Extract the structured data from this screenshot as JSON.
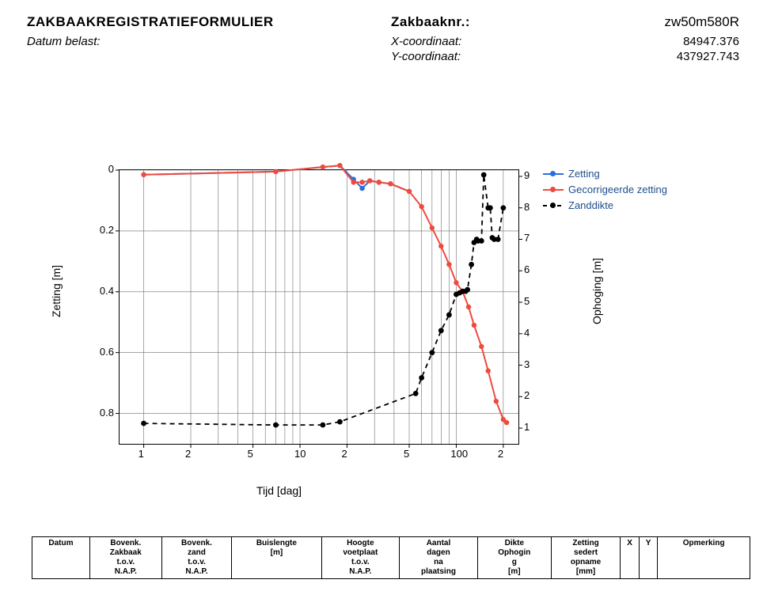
{
  "header": {
    "title": "ZAKBAAKREGISTRATIEFORMULIER",
    "datum_label": "Datum belast:",
    "zakbaaknr_label": "Zakbaaknr.:",
    "zakbaaknr_value": "zw50m580R",
    "xcoord_label": "X-coordinaat:",
    "xcoord_value": "84947.376",
    "ycoord_label": "Y-coordinaat:",
    "ycoord_value": "437927.743"
  },
  "chart": {
    "type": "line-dual-axis-logx",
    "background": "#ffffff",
    "border_color": "#000000",
    "grid_color": "#6f6f6f",
    "x_axis": {
      "label": "Tijd [dag]",
      "scale": "log",
      "min": 0.7,
      "max": 250,
      "ticks": [
        {
          "v": 1,
          "label": "1"
        },
        {
          "v": 2,
          "label": "2"
        },
        {
          "v": 5,
          "label": "5"
        },
        {
          "v": 10,
          "label": "10"
        },
        {
          "v": 20,
          "label": "2"
        },
        {
          "v": 50,
          "label": "5"
        },
        {
          "v": 100,
          "label": "100"
        },
        {
          "v": 200,
          "label": "2"
        }
      ]
    },
    "y1_axis": {
      "label": "Zetting [m]",
      "min": 0,
      "max": 0.9,
      "inverted": true,
      "ticks": [
        {
          "v": 0,
          "label": "0"
        },
        {
          "v": 0.2,
          "label": "0.2"
        },
        {
          "v": 0.4,
          "label": "0.4"
        },
        {
          "v": 0.6,
          "label": "0.6"
        },
        {
          "v": 0.8,
          "label": "0.8"
        }
      ]
    },
    "y2_axis": {
      "label": "Ophoging [m]",
      "min": 0.5,
      "max": 9.2,
      "ticks": [
        {
          "v": 1,
          "label": "1"
        },
        {
          "v": 2,
          "label": "2"
        },
        {
          "v": 3,
          "label": "3"
        },
        {
          "v": 4,
          "label": "4"
        },
        {
          "v": 5,
          "label": "5"
        },
        {
          "v": 6,
          "label": "6"
        },
        {
          "v": 7,
          "label": "7"
        },
        {
          "v": 8,
          "label": "8"
        },
        {
          "v": 9,
          "label": "9"
        }
      ]
    },
    "legend": {
      "items": [
        {
          "label": "Zetting",
          "color": "#2b6fdb",
          "dash": "none",
          "marker": "#2b6fdb"
        },
        {
          "label": "Gecorrigeerde zetting",
          "color": "#f04a3e",
          "dash": "none",
          "marker": "#f04a3e"
        },
        {
          "label": "Zanddikte",
          "color": "#000000",
          "dash": "5,4",
          "marker": "#000000"
        }
      ]
    },
    "series": {
      "zetting": {
        "color": "#2b6fdb",
        "axis": "y1",
        "lw": 2,
        "marker_r": 3.2,
        "data": [
          [
            1,
            0.015
          ],
          [
            7,
            0.005
          ],
          [
            14,
            -0.01
          ],
          [
            18,
            -0.015
          ],
          [
            22,
            0.03
          ],
          [
            25,
            0.06
          ],
          [
            28,
            0.035
          ],
          [
            32,
            0.04
          ],
          [
            38,
            0.045
          ],
          [
            50,
            0.07
          ]
        ]
      },
      "gecorrigeerde_zetting": {
        "color": "#f04a3e",
        "axis": "y1",
        "lw": 2,
        "marker_r": 3.2,
        "data": [
          [
            1,
            0.015
          ],
          [
            7,
            0.005
          ],
          [
            14,
            -0.01
          ],
          [
            18,
            -0.015
          ],
          [
            22,
            0.04
          ],
          [
            25,
            0.04
          ],
          [
            28,
            0.035
          ],
          [
            32,
            0.04
          ],
          [
            38,
            0.045
          ],
          [
            50,
            0.07
          ],
          [
            60,
            0.12
          ],
          [
            70,
            0.19
          ],
          [
            80,
            0.25
          ],
          [
            90,
            0.31
          ],
          [
            100,
            0.37
          ],
          [
            110,
            0.4
          ],
          [
            120,
            0.45
          ],
          [
            130,
            0.51
          ],
          [
            145,
            0.58
          ],
          [
            160,
            0.66
          ],
          [
            180,
            0.76
          ],
          [
            200,
            0.82
          ],
          [
            210,
            0.83
          ]
        ]
      },
      "zanddikte": {
        "color": "#000000",
        "axis": "y2",
        "lw": 1.8,
        "dash": "6,5",
        "marker_r": 3.4,
        "data": [
          [
            1,
            1.15
          ],
          [
            7,
            1.1
          ],
          [
            14,
            1.1
          ],
          [
            18,
            1.2
          ],
          [
            55,
            2.1
          ],
          [
            60,
            2.6
          ],
          [
            70,
            3.4
          ],
          [
            80,
            4.1
          ],
          [
            90,
            4.6
          ],
          [
            100,
            5.25
          ],
          [
            105,
            5.3
          ],
          [
            110,
            5.35
          ],
          [
            115,
            5.35
          ],
          [
            118,
            5.4
          ],
          [
            125,
            6.2
          ],
          [
            130,
            6.9
          ],
          [
            135,
            7.0
          ],
          [
            138,
            6.95
          ],
          [
            145,
            6.95
          ],
          [
            150,
            9.05
          ],
          [
            160,
            8.0
          ],
          [
            165,
            8.0
          ],
          [
            170,
            7.05
          ],
          [
            175,
            7.0
          ],
          [
            185,
            7.0
          ],
          [
            200,
            8.0
          ]
        ]
      }
    }
  },
  "table": {
    "columns": [
      "Datum",
      "Bovenk.\nZakbaak\nt.o.v.\nN.A.P.",
      "Bovenk.\nzand\nt.o.v.\nN.A.P.",
      "Buislengte\n[m]",
      "Hoogte\nvoetplaat\nt.o.v.\nN.A.P.",
      "Aantal\ndagen\nna\nplaatsing",
      "Dikte\nOphogin\ng\n[m]",
      "Zetting\nsedert\nopname\n[mm]",
      "X",
      "Y",
      "Opmerking"
    ]
  }
}
